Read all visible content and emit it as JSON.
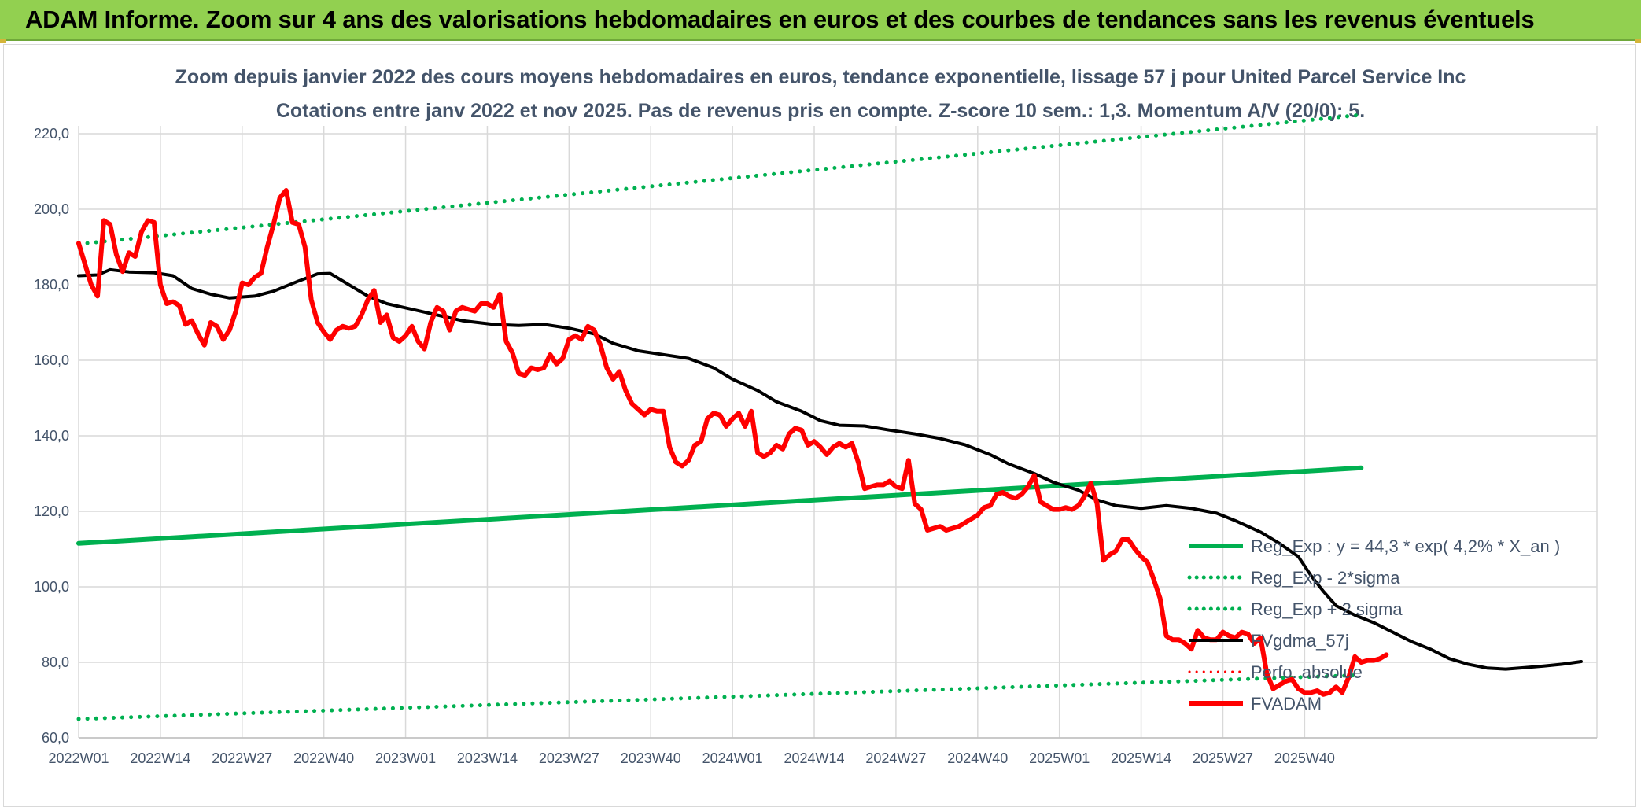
{
  "banner": {
    "title": "ADAM Informe. Zoom sur 4 ans des valorisations hebdomadaires en euros et des courbes de tendances sans les revenus éventuels"
  },
  "colors": {
    "banner_bg": "#92d050",
    "trend_green": "#00b050",
    "smoothed_black": "#000000",
    "price_red": "#ff0000",
    "axis_text": "#44546a",
    "grid": "#d9d9d9"
  },
  "chart_data": {
    "type": "line",
    "title": "Zoom depuis janvier 2022 des cours moyens hebdomadaires en euros, tendance exponentielle, lissage 57 j pour United Parcel Service Inc",
    "subtitle": "Cotations entre janv 2022 et nov 2025. Pas de revenus pris en compte. Z-score 10 sem.: 1,3. Momentum A/V (20/0): 5.",
    "xlabel": "",
    "ylabel": "",
    "x_ticks": [
      "2022W01",
      "2022W14",
      "2022W27",
      "2022W40",
      "2023W01",
      "2023W14",
      "2023W27",
      "2023W40",
      "2024W01",
      "2024W14",
      "2024W27",
      "2024W40",
      "2025W01",
      "2025W14",
      "2025W27",
      "2025W40"
    ],
    "y_ticks": [
      "60,0",
      "80,0",
      "100,0",
      "120,0",
      "140,0",
      "160,0",
      "180,0",
      "200,0",
      "220,0"
    ],
    "ylim": [
      60,
      220
    ],
    "x_range_weeks": [
      0,
      204
    ],
    "grid": true,
    "legend_position": "bottom-right",
    "series": [
      {
        "name": "Reg_Exp : y = 44,3 * exp( 4,2% * X_an )",
        "color": "#00b050",
        "style": "solid",
        "width": 6,
        "points": [
          [
            0,
            111.5
          ],
          [
            204,
            131.5
          ]
        ]
      },
      {
        "name": "Reg_Exp - 2*sigma",
        "color": "#00b050",
        "style": "dotted",
        "width": 5,
        "points": [
          [
            0,
            65.0
          ],
          [
            204,
            76.6
          ]
        ]
      },
      {
        "name": "Reg_Exp + 2 sigma",
        "color": "#00b050",
        "style": "dotted",
        "width": 5,
        "points": [
          [
            0,
            190.8
          ],
          [
            204,
            225.0
          ]
        ]
      },
      {
        "name": "FVgdma_57j",
        "color": "#000000",
        "style": "solid",
        "width": 4,
        "points": [
          [
            0,
            182.4
          ],
          [
            3,
            182.6
          ],
          [
            5,
            184.0
          ],
          [
            8,
            183.4
          ],
          [
            12,
            183.2
          ],
          [
            15,
            182.4
          ],
          [
            18,
            179.0
          ],
          [
            21,
            177.5
          ],
          [
            24,
            176.5
          ],
          [
            28,
            177.0
          ],
          [
            31,
            178.3
          ],
          [
            35,
            181.0
          ],
          [
            38,
            182.9
          ],
          [
            40,
            183.0
          ],
          [
            43,
            180.0
          ],
          [
            46,
            177.0
          ],
          [
            49,
            175.0
          ],
          [
            53,
            173.5
          ],
          [
            57,
            172.0
          ],
          [
            61,
            170.5
          ],
          [
            66,
            169.5
          ],
          [
            70,
            169.2
          ],
          [
            74,
            169.5
          ],
          [
            78,
            168.5
          ],
          [
            82,
            167.0
          ],
          [
            85,
            164.5
          ],
          [
            89,
            162.5
          ],
          [
            93,
            161.5
          ],
          [
            97,
            160.5
          ],
          [
            101,
            158.0
          ],
          [
            104,
            155.0
          ],
          [
            108,
            152.0
          ],
          [
            111,
            149.0
          ],
          [
            115,
            146.5
          ],
          [
            118,
            144.0
          ],
          [
            121,
            142.8
          ],
          [
            125,
            142.6
          ],
          [
            129,
            141.5
          ],
          [
            133,
            140.5
          ],
          [
            137,
            139.3
          ],
          [
            141,
            137.6
          ],
          [
            145,
            135.0
          ],
          [
            148,
            132.5
          ],
          [
            152,
            130.0
          ],
          [
            155,
            127.7
          ],
          [
            159,
            125.6
          ],
          [
            162,
            123.0
          ],
          [
            165,
            121.5
          ],
          [
            169,
            120.8
          ],
          [
            173,
            121.5
          ],
          [
            177,
            120.8
          ],
          [
            181,
            119.5
          ],
          [
            184,
            117.5
          ],
          [
            188,
            114.5
          ],
          [
            191,
            111.5
          ],
          [
            194,
            108.0
          ],
          [
            196,
            103.0
          ],
          [
            198,
            98.8
          ],
          [
            200,
            95.0
          ],
          [
            203,
            92.5
          ],
          [
            206,
            90.5
          ],
          [
            209,
            88.0
          ],
          [
            212,
            85.5
          ],
          [
            215,
            83.5
          ],
          [
            218,
            81.0
          ],
          [
            221,
            79.5
          ],
          [
            224,
            78.5
          ],
          [
            227,
            78.2
          ],
          [
            230,
            78.6
          ],
          [
            233,
            79.0
          ],
          [
            236,
            79.5
          ],
          [
            239,
            80.2
          ]
        ]
      },
      {
        "name": "Perfo. absolue",
        "color": "#ff0000",
        "style": "dotted",
        "width": 3,
        "points": []
      },
      {
        "name": "FVADAM",
        "color": "#ff0000",
        "style": "solid",
        "width": 6,
        "points": [
          [
            0,
            191.0
          ],
          [
            2,
            180.0
          ],
          [
            3,
            177.0
          ],
          [
            4,
            197.0
          ],
          [
            5,
            196.0
          ],
          [
            6,
            188.0
          ],
          [
            7,
            183.5
          ],
          [
            8,
            188.5
          ],
          [
            9,
            187.5
          ],
          [
            10,
            194.0
          ],
          [
            11,
            197.0
          ],
          [
            12,
            196.5
          ],
          [
            13,
            180.0
          ],
          [
            14,
            175.0
          ],
          [
            15,
            175.5
          ],
          [
            16,
            174.5
          ],
          [
            17,
            169.5
          ],
          [
            18,
            170.5
          ],
          [
            19,
            167.0
          ],
          [
            20,
            164.0
          ],
          [
            21,
            170.0
          ],
          [
            22,
            169.0
          ],
          [
            23,
            165.5
          ],
          [
            24,
            168.0
          ],
          [
            25,
            173.0
          ],
          [
            26,
            180.5
          ],
          [
            27,
            180.0
          ],
          [
            28,
            182.0
          ],
          [
            29,
            183.0
          ],
          [
            30,
            190.0
          ],
          [
            31,
            196.0
          ],
          [
            32,
            203.0
          ],
          [
            33,
            205.0
          ],
          [
            34,
            196.5
          ],
          [
            35,
            196.0
          ],
          [
            36,
            190.0
          ],
          [
            37,
            176.0
          ],
          [
            38,
            170.0
          ],
          [
            39,
            167.5
          ],
          [
            40,
            165.5
          ],
          [
            41,
            168.0
          ],
          [
            42,
            169.0
          ],
          [
            43,
            168.5
          ],
          [
            44,
            169.0
          ],
          [
            45,
            172.0
          ],
          [
            46,
            176.0
          ],
          [
            47,
            178.5
          ],
          [
            48,
            170.0
          ],
          [
            49,
            172.0
          ],
          [
            50,
            166.0
          ],
          [
            51,
            165.0
          ],
          [
            52,
            166.5
          ],
          [
            53,
            169.0
          ],
          [
            54,
            165.0
          ],
          [
            55,
            163.0
          ],
          [
            56,
            170.0
          ],
          [
            57,
            174.0
          ],
          [
            58,
            173.0
          ],
          [
            59,
            168.0
          ],
          [
            60,
            173.0
          ],
          [
            61,
            174.0
          ],
          [
            62,
            173.5
          ],
          [
            63,
            173.0
          ],
          [
            64,
            175.0
          ],
          [
            65,
            175.0
          ],
          [
            66,
            174.0
          ],
          [
            67,
            177.5
          ],
          [
            68,
            165.0
          ],
          [
            69,
            162.0
          ],
          [
            70,
            156.5
          ],
          [
            71,
            156.0
          ],
          [
            72,
            158.0
          ],
          [
            73,
            157.5
          ],
          [
            74,
            158.0
          ],
          [
            75,
            161.5
          ],
          [
            76,
            159.0
          ],
          [
            77,
            160.5
          ],
          [
            78,
            165.5
          ],
          [
            79,
            166.5
          ],
          [
            80,
            165.5
          ],
          [
            81,
            169.0
          ],
          [
            82,
            168.0
          ],
          [
            83,
            164.0
          ],
          [
            84,
            158.0
          ],
          [
            85,
            155.0
          ],
          [
            86,
            157.0
          ],
          [
            87,
            152.0
          ],
          [
            88,
            148.5
          ],
          [
            89,
            147.0
          ],
          [
            90,
            145.5
          ],
          [
            91,
            147.0
          ],
          [
            92,
            146.5
          ],
          [
            93,
            146.5
          ],
          [
            94,
            137.0
          ],
          [
            95,
            133.0
          ],
          [
            96,
            132.0
          ],
          [
            97,
            133.5
          ],
          [
            98,
            137.5
          ],
          [
            99,
            138.5
          ],
          [
            100,
            144.5
          ],
          [
            101,
            146.0
          ],
          [
            102,
            145.5
          ],
          [
            103,
            142.5
          ],
          [
            104,
            144.5
          ],
          [
            105,
            146.0
          ],
          [
            106,
            142.5
          ],
          [
            107,
            146.5
          ],
          [
            108,
            135.5
          ],
          [
            109,
            134.5
          ],
          [
            110,
            135.5
          ],
          [
            111,
            137.5
          ],
          [
            112,
            136.5
          ],
          [
            113,
            140.5
          ],
          [
            114,
            142.0
          ],
          [
            115,
            141.5
          ],
          [
            116,
            137.5
          ],
          [
            117,
            138.5
          ],
          [
            118,
            137.0
          ],
          [
            119,
            135.0
          ],
          [
            120,
            137.0
          ],
          [
            121,
            138.0
          ],
          [
            122,
            137.0
          ],
          [
            123,
            138.0
          ],
          [
            124,
            133.0
          ],
          [
            125,
            126.0
          ],
          [
            126,
            126.5
          ],
          [
            127,
            127.0
          ],
          [
            128,
            127.0
          ],
          [
            129,
            128.0
          ],
          [
            130,
            126.5
          ],
          [
            131,
            126.0
          ],
          [
            132,
            133.5
          ],
          [
            133,
            122.0
          ],
          [
            134,
            120.5
          ],
          [
            135,
            115.0
          ],
          [
            136,
            115.5
          ],
          [
            137,
            116.0
          ],
          [
            138,
            115.0
          ],
          [
            139,
            115.5
          ],
          [
            140,
            116.0
          ],
          [
            141,
            117.0
          ],
          [
            142,
            118.0
          ],
          [
            143,
            119.0
          ],
          [
            144,
            121.0
          ],
          [
            145,
            121.5
          ],
          [
            146,
            124.5
          ],
          [
            147,
            125.0
          ],
          [
            148,
            124.0
          ],
          [
            149,
            123.5
          ],
          [
            150,
            124.5
          ],
          [
            151,
            126.5
          ],
          [
            152,
            129.5
          ],
          [
            153,
            122.5
          ],
          [
            154,
            121.5
          ],
          [
            155,
            120.5
          ],
          [
            156,
            120.5
          ],
          [
            157,
            121.0
          ],
          [
            158,
            120.5
          ],
          [
            159,
            121.5
          ],
          [
            160,
            124.0
          ],
          [
            161,
            127.5
          ],
          [
            162,
            122.0
          ],
          [
            163,
            107.0
          ],
          [
            164,
            108.5
          ],
          [
            165,
            109.5
          ],
          [
            166,
            112.5
          ],
          [
            167,
            112.5
          ],
          [
            168,
            110.0
          ],
          [
            169,
            108.0
          ],
          [
            170,
            106.5
          ],
          [
            171,
            102.0
          ],
          [
            172,
            97.0
          ],
          [
            173,
            87.0
          ],
          [
            174,
            86.0
          ],
          [
            175,
            86.0
          ],
          [
            176,
            85.0
          ],
          [
            177,
            83.5
          ],
          [
            178,
            88.5
          ],
          [
            179,
            86.5
          ],
          [
            180,
            86.0
          ],
          [
            181,
            86.0
          ],
          [
            182,
            88.0
          ],
          [
            183,
            87.0
          ],
          [
            184,
            86.5
          ],
          [
            185,
            88.0
          ],
          [
            186,
            87.5
          ],
          [
            187,
            85.0
          ],
          [
            188,
            86.5
          ],
          [
            189,
            77.0
          ],
          [
            190,
            73.0
          ],
          [
            191,
            74.0
          ],
          [
            192,
            75.0
          ],
          [
            193,
            75.5
          ],
          [
            194,
            73.0
          ],
          [
            195,
            72.0
          ],
          [
            196,
            72.0
          ],
          [
            197,
            72.5
          ],
          [
            198,
            71.5
          ],
          [
            199,
            72.0
          ],
          [
            200,
            73.5
          ],
          [
            201,
            72.0
          ],
          [
            202,
            76.0
          ],
          [
            203,
            81.5
          ],
          [
            204,
            80.0
          ],
          [
            205,
            80.5
          ],
          [
            206,
            80.5
          ],
          [
            207,
            81.0
          ],
          [
            208,
            82.0
          ]
        ]
      }
    ]
  }
}
